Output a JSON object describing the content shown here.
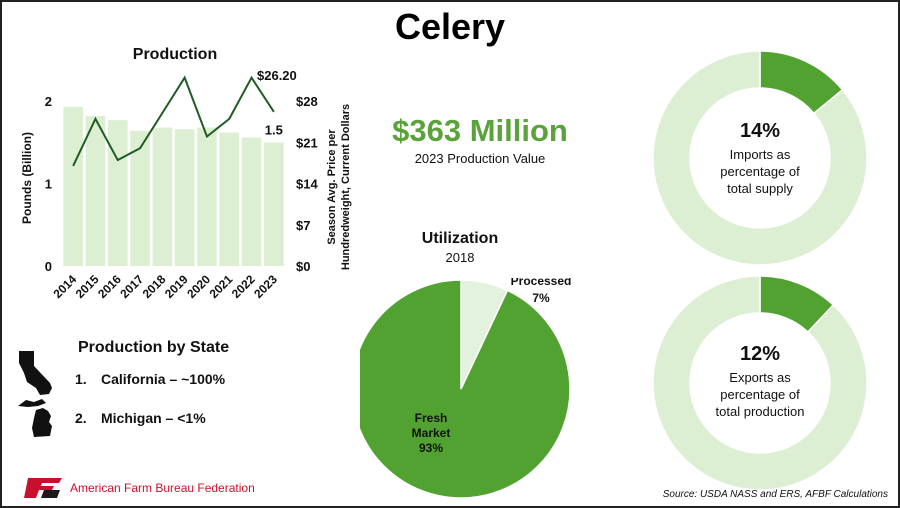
{
  "title": "Celery",
  "production": {
    "title": "Production",
    "y_left_label": "Pounds (Billion)",
    "y_right_label_line1": "Season Avg. Price per",
    "y_right_label_line2": "Hundredweight, Current Dollars",
    "last_bar_label": "1.5",
    "last_price_peak_label": "$26.20"
  },
  "chart_data": [
    {
      "type": "bar+line",
      "title": "Production",
      "categories": [
        "2014",
        "2015",
        "2016",
        "2017",
        "2018",
        "2019",
        "2020",
        "2021",
        "2022",
        "2023"
      ],
      "series": [
        {
          "name": "",
          "type": "bar",
          "axis": "left",
          "values": [
            1.93,
            1.82,
            1.77,
            1.64,
            1.68,
            1.66,
            1.68,
            1.62,
            1.56,
            1.5
          ]
        },
        {
          "name": "",
          "type": "line",
          "axis": "right",
          "values": [
            17,
            25,
            18,
            20,
            26,
            32,
            22,
            25,
            32,
            26.2
          ]
        }
      ],
      "ylabel": "Pounds (Billion)",
      "y2label": "Season Avg. Price per Hundredweight, Current Dollars",
      "ylim": [
        0,
        2.5
      ],
      "y2lim": [
        0,
        35
      ],
      "yticks": [
        "0",
        "1",
        "2"
      ],
      "y2ticks": [
        "$0",
        "$7",
        "$14",
        "$21",
        "$28"
      ],
      "colors": {
        "bar": "#dcefd2",
        "line": "#1f5c23"
      }
    },
    {
      "type": "pie",
      "title": "Utilization",
      "subtitle": "2018",
      "slices": [
        {
          "label": "Processed",
          "pct_label": "7%",
          "value": 7,
          "color": "#e3f2dc"
        },
        {
          "label_line1": "Fresh",
          "label_line2": "Market",
          "pct_label": "93%",
          "value": 93,
          "color": "#52a232"
        }
      ]
    },
    {
      "type": "donut",
      "value": 14,
      "pct_label": "14%",
      "desc": [
        "Imports as",
        "percentage of",
        "total supply"
      ],
      "colors": {
        "value": "#52a232",
        "rest": "#dcefd2"
      }
    },
    {
      "type": "donut",
      "value": 12,
      "pct_label": "12%",
      "desc": [
        "Exports as",
        "percentage of",
        "total production"
      ],
      "colors": {
        "value": "#52a232",
        "rest": "#dcefd2"
      }
    }
  ],
  "headline": {
    "value": "$363 Million",
    "caption": "2023 Production Value"
  },
  "states": {
    "title": "Production by State",
    "items": [
      {
        "num": "1.",
        "text": "California – ~100%",
        "icon": "california-icon"
      },
      {
        "num": "2.",
        "text": "Michigan – <1%",
        "icon": "michigan-icon"
      }
    ]
  },
  "footer": {
    "org": "American Farm Bureau Federation",
    "source": "Source: USDA NASS and ERS, AFBF Calculations"
  }
}
